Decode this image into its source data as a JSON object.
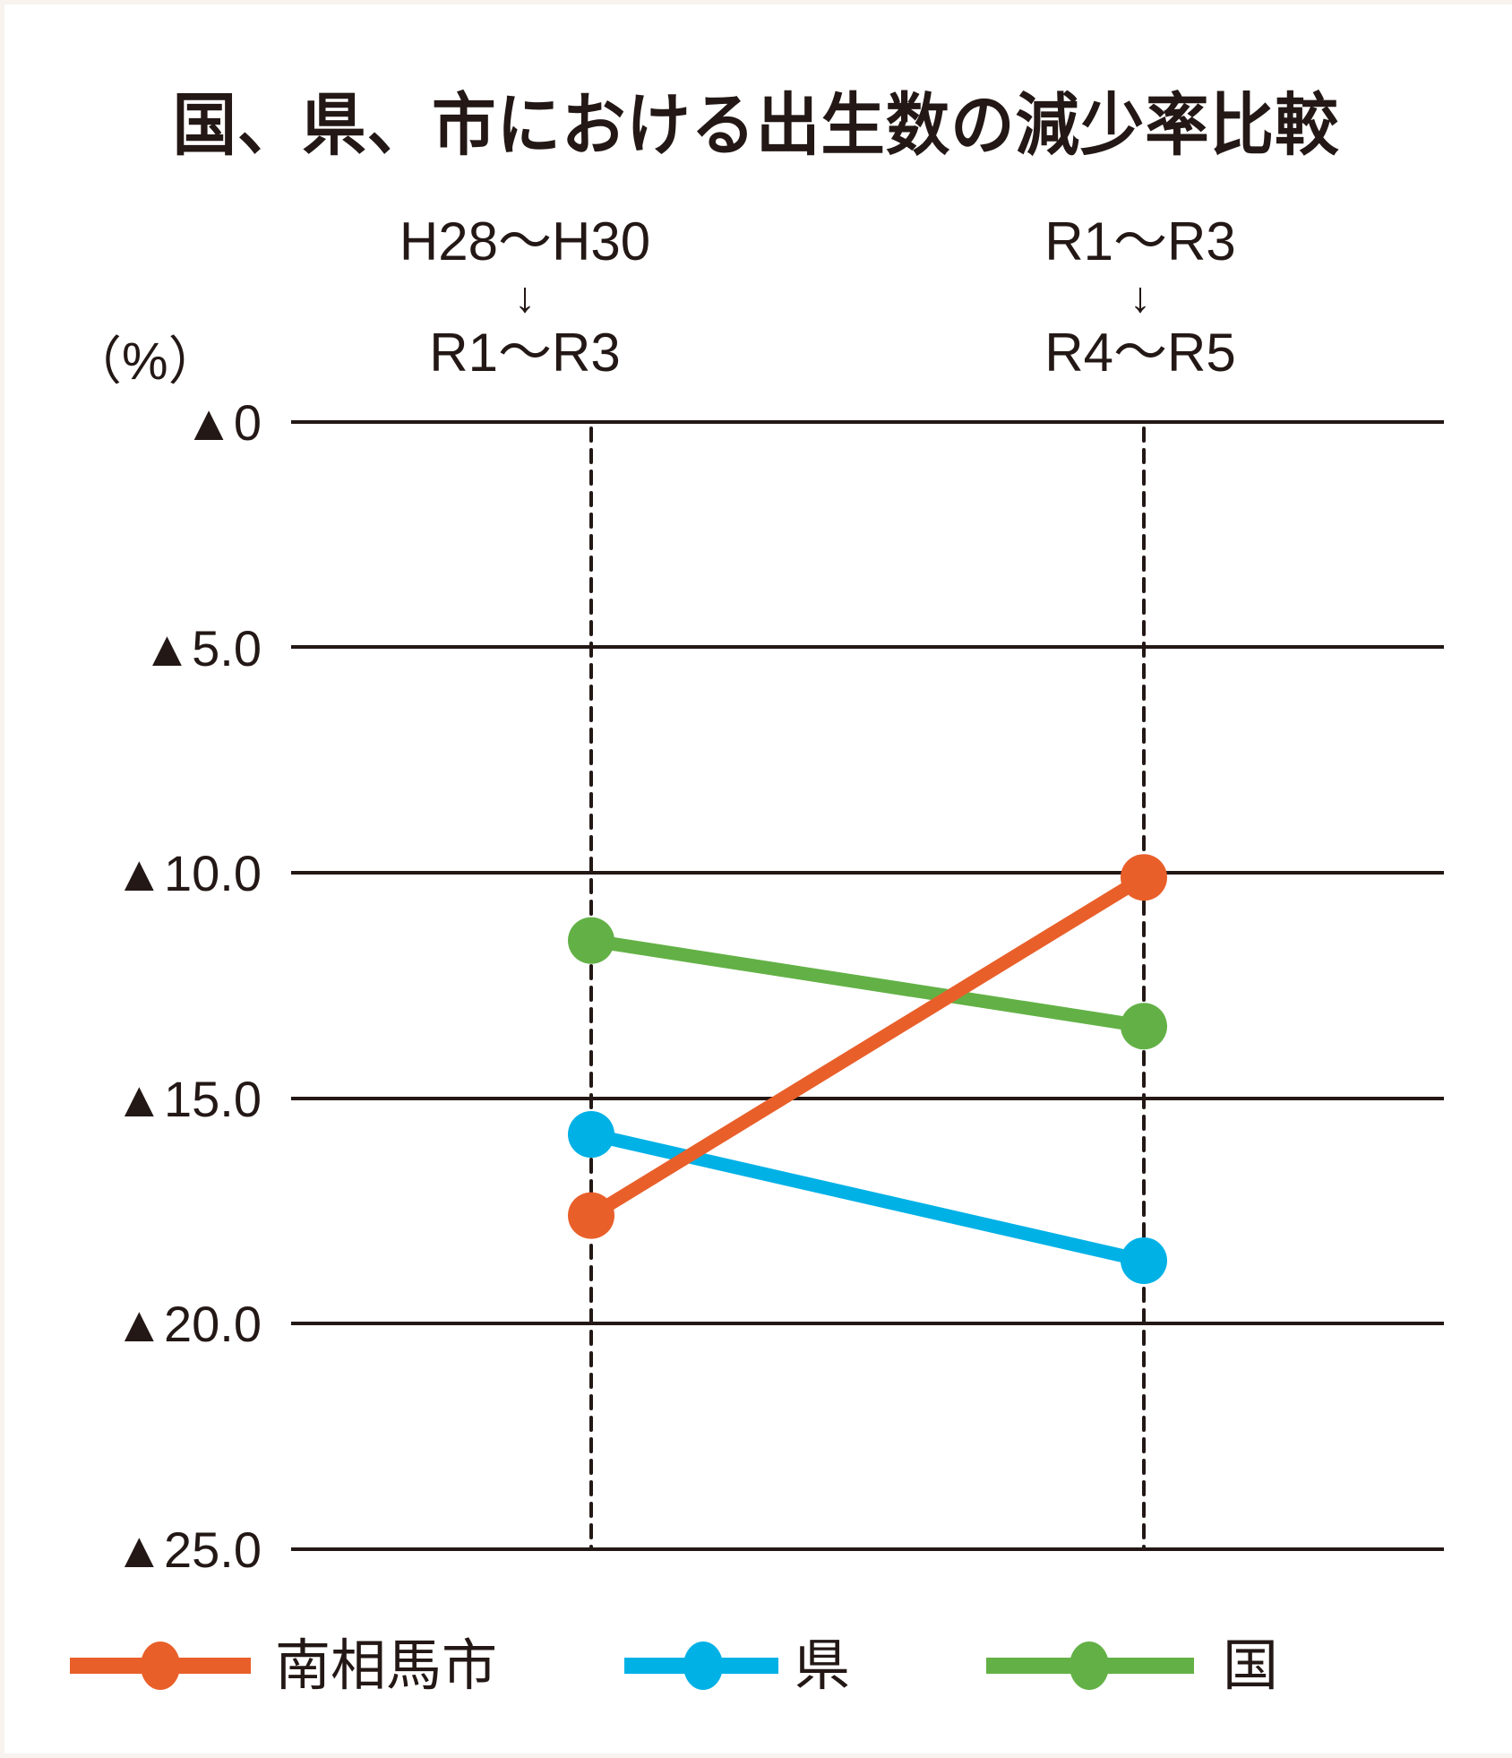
{
  "title": "国、県、市における出生数の減少率比較",
  "unit_label": "（%）",
  "periods": [
    {
      "from": "H28〜H30",
      "arrow": "↓",
      "to": "R1〜R3"
    },
    {
      "from": "R1〜R3",
      "arrow": "↓",
      "to": "R4〜R5"
    }
  ],
  "y_ticks": [
    "▲0",
    "▲5.0",
    "▲10.0",
    "▲15.0",
    "▲20.0",
    "▲25.0"
  ],
  "legend": [
    {
      "label": "南相馬市",
      "color": "#e95f2a"
    },
    {
      "label": "県",
      "color": "#00b1e6"
    },
    {
      "label": "国",
      "color": "#63b146"
    }
  ],
  "chart_data": {
    "type": "line",
    "title": "国、県、市における出生数の減少率比較",
    "xlabel": "",
    "ylabel": "（%）",
    "categories": [
      "H28〜H30 → R1〜R3",
      "R1〜R3 → R4〜R5"
    ],
    "y_tick_labels": [
      "▲0",
      "▲5.0",
      "▲10.0",
      "▲15.0",
      "▲20.0",
      "▲25.0"
    ],
    "ylim": [
      0,
      -25
    ],
    "y_inverted_decline": true,
    "grid": "horizontal",
    "legend_position": "bottom",
    "series": [
      {
        "name": "南相馬市",
        "color": "#e95f2a",
        "values": [
          -17.6,
          -10.1
        ]
      },
      {
        "name": "県",
        "color": "#00b1e6",
        "values": [
          -15.8,
          -18.6
        ]
      },
      {
        "name": "国",
        "color": "#63b146",
        "values": [
          -11.5,
          -13.4
        ]
      }
    ]
  }
}
